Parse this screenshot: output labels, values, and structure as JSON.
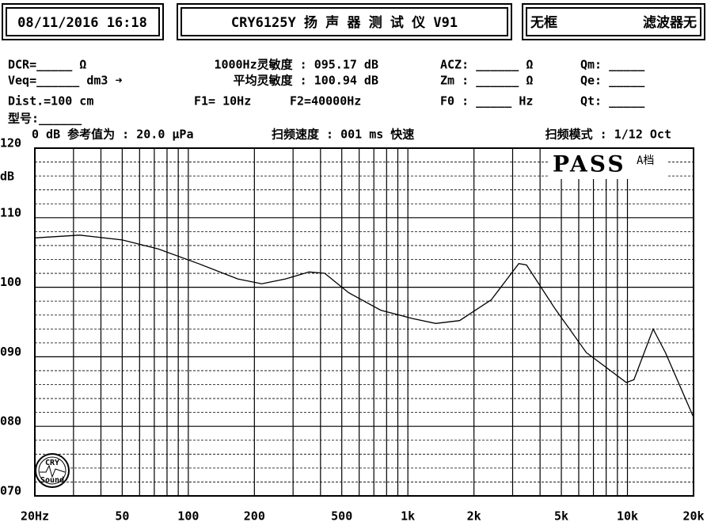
{
  "header": {
    "datetime": "08/11/2016 16:18",
    "title": "CRY6125Y 扬 声 器 测 试 仪  V91",
    "frame": "无框",
    "filter": "滤波器无"
  },
  "info": {
    "dcr": "DCR=_____ Ω",
    "veq": "Veq=______ dm3 ➜",
    "dist": "Dist.=100 cm",
    "sens1k": "1000Hz灵敏度 : 095.17 dB",
    "sensavg": "平均灵敏度 : 100.94 dB",
    "f1": "F1=   10Hz",
    "f2": "F2=40000Hz",
    "acz": "ACZ: ______ Ω",
    "zm": "Zm : ______ Ω",
    "f0": "F0 : _____ Hz",
    "qm": "Qm: _____",
    "qe": "Qe: _____",
    "qt": "Qt: _____",
    "model": "型号:______",
    "ref": "0 dB 参考值为 : 20.0 μPa",
    "speed": "扫频速度 : 001 ms 快速",
    "mode": "扫频模式 : 1/12 Oct"
  },
  "logo": {
    "top": "CRY",
    "bottom": "Sound"
  },
  "chart_data": {
    "type": "line",
    "ylabel": "dB",
    "xscale": "log",
    "color": "#000000",
    "x": [
      20,
      32,
      50,
      73,
      111,
      168,
      216,
      277,
      355,
      418,
      538,
      752,
      1050,
      1340,
      1720,
      2400,
      3200,
      3470,
      4680,
      6500,
      9880,
      10700,
      13100,
      14900,
      20000
    ],
    "values": [
      107.1,
      107.5,
      106.8,
      105.5,
      103.4,
      101.2,
      100.5,
      101.2,
      102.2,
      102.0,
      99.2,
      96.7,
      95.5,
      94.8,
      95.2,
      98.2,
      103.4,
      103.2,
      96.9,
      90.6,
      86.3,
      86.7,
      94.0,
      90.6,
      81.3
    ],
    "xlim": [
      20,
      20000
    ],
    "ylim": [
      70,
      120
    ],
    "xticks": [
      {
        "value": 20,
        "label": "20Hz"
      },
      50,
      100,
      200,
      500,
      {
        "value": 1000,
        "label": "1k"
      },
      {
        "value": 2000,
        "label": "2k"
      },
      {
        "value": 5000,
        "label": "5k"
      },
      {
        "value": 10000,
        "label": "10k"
      },
      {
        "value": 20000,
        "label": "20k"
      }
    ],
    "yticks": [
      {
        "value": 70,
        "label": "070"
      },
      {
        "value": 80,
        "label": "080"
      },
      {
        "value": 90,
        "label": "090"
      },
      100,
      110,
      120
    ],
    "xgrid": [
      30,
      40,
      60,
      70,
      80,
      90,
      300,
      400,
      600,
      700,
      800,
      900,
      3000,
      4000,
      6000,
      7000,
      8000,
      9000
    ],
    "yminor": [
      72,
      74,
      76,
      78,
      82,
      84,
      86,
      88,
      92,
      94,
      96,
      98,
      102,
      104,
      106,
      108,
      112,
      114,
      116,
      118
    ],
    "status": "PASS",
    "status_note": "A档"
  }
}
